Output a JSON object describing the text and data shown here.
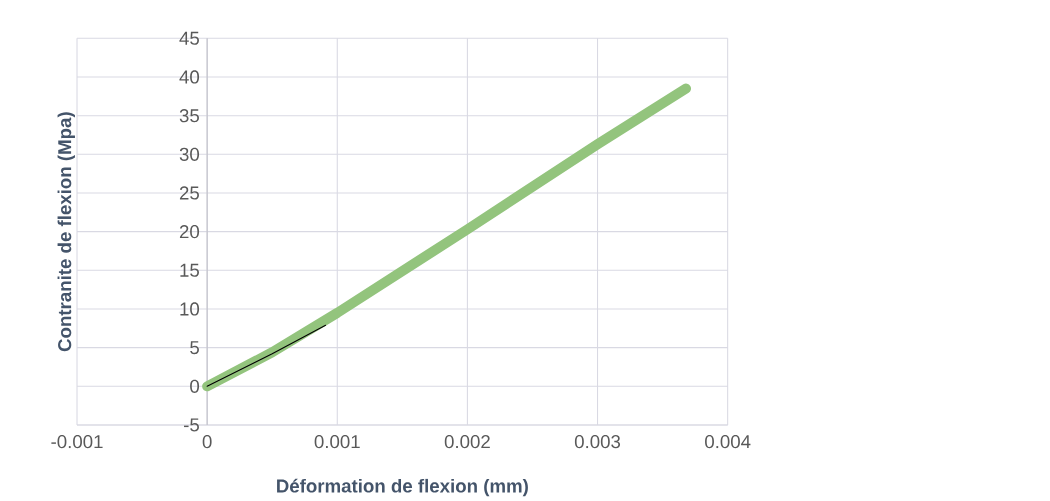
{
  "chart_data": {
    "type": "line",
    "xlabel": "Déformation de flexion (mm)",
    "ylabel": "Contranite de flexion (Mpa)",
    "xlim": [
      -0.001,
      0.004
    ],
    "xticks": [
      -0.001,
      0,
      0.001,
      0.002,
      0.003,
      0.004
    ],
    "ylim": [
      -5,
      45
    ],
    "yticks": [
      -5,
      0,
      5,
      10,
      15,
      20,
      25,
      30,
      35,
      40,
      45
    ],
    "grid": true,
    "marker": "none",
    "line_style": "solid",
    "series": [
      {
        "color": "#93c47d",
        "x": [
          0,
          0.0005,
          0.001,
          0.002,
          0.003,
          0.00368
        ],
        "values": [
          0,
          4.4,
          9.5,
          20.3,
          31.3,
          38.5
        ]
      },
      {
        "color": "#000000",
        "x": [
          0,
          0.0005,
          0.00091
        ],
        "values": [
          0,
          4.2,
          7.9
        ]
      }
    ]
  }
}
